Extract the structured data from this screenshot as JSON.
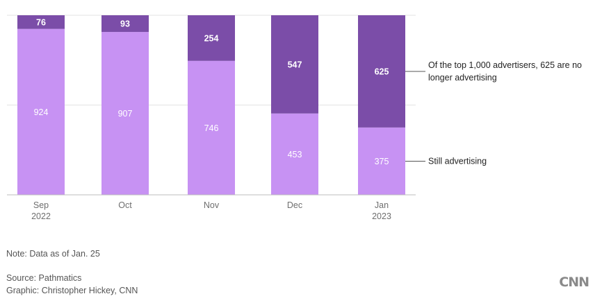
{
  "chart_data": {
    "type": "bar",
    "stacked": true,
    "categories": [
      "Sep\n2022",
      "Oct",
      "Nov",
      "Dec",
      "Jan\n2023"
    ],
    "series": [
      {
        "values": [
          924,
          907,
          746,
          453,
          375
        ],
        "color": "#c792f3"
      },
      {
        "values": [
          76,
          93,
          254,
          547,
          625
        ],
        "color": "#7b4da8"
      }
    ],
    "ylim": [
      0,
      1000
    ],
    "grid": true,
    "annotations": [
      {
        "text": "Of the top 1,000 advertisers, 625 are no longer advertising",
        "category": 4,
        "series": 1
      },
      {
        "text": "Still advertising",
        "category": 4,
        "series": 0
      }
    ]
  },
  "footer": {
    "note": "Note: Data as of Jan. 25",
    "source": "Source: Pathmatics",
    "credit": "Graphic: Christopher Hickey, CNN",
    "logo": "CNN"
  }
}
